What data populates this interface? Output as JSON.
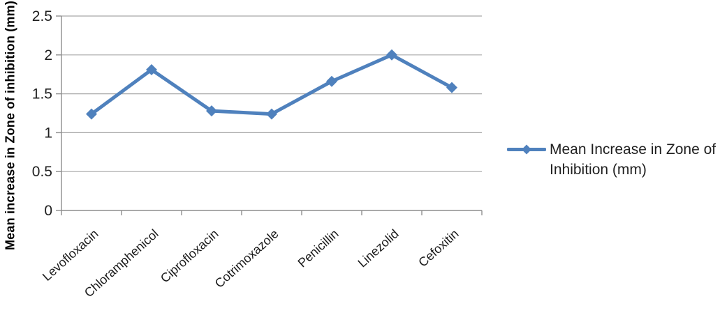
{
  "chart_data": {
    "type": "line",
    "title": "",
    "categories": [
      "Levofloxacin",
      "Chloramphenicol",
      "Ciprofloxacin",
      "Cotrimoxazole",
      "Penicillin",
      "Linezolid",
      "Cefoxitin"
    ],
    "series": [
      {
        "name": "Mean Increase in Zone of Inhibition (mm)",
        "values": [
          1.24,
          1.81,
          1.28,
          1.24,
          1.66,
          2,
          1.58
        ]
      }
    ],
    "xlabel": "",
    "ylabel": "Mean increase in Zone of inhibition (mm)",
    "ylim": [
      0,
      2.5
    ],
    "ytick_step": 0.5,
    "ytick_labels": [
      "0",
      "0.5",
      "1",
      "1.5",
      "2",
      "2.5"
    ],
    "grid": true,
    "legend_position": "right",
    "marker": "diamond",
    "colors": {
      "series": "#4F81BD",
      "gridline": "#A6A6A6",
      "axis": "#8E8E8E",
      "tick_text": "#1F1F1F"
    }
  },
  "legend": {
    "lines": [
      "Mean Increase in Zone of",
      "Inhibition (mm)"
    ]
  }
}
